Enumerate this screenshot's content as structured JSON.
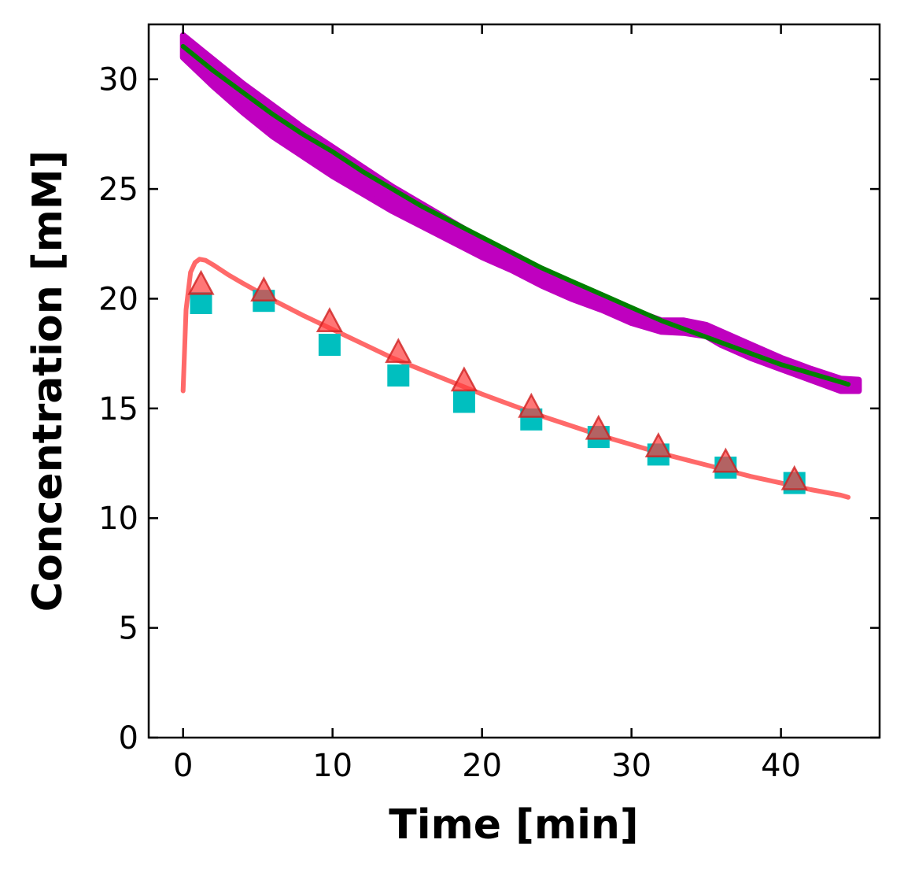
{
  "chart_data": {
    "type": "line",
    "xlabel": "Time [min]",
    "ylabel": "Concentration [mM]",
    "xlim": [
      -2.3,
      46.6
    ],
    "ylim": [
      0,
      32.5
    ],
    "xticks": [
      0,
      10,
      20,
      30,
      40
    ],
    "yticks": [
      0,
      5,
      10,
      15,
      20,
      25,
      30
    ],
    "grid": false,
    "legend": "none",
    "series": [
      {
        "kind": "band",
        "color": "#bf00bf",
        "x": [
          0,
          2,
          4,
          6,
          8,
          10,
          12,
          14,
          16,
          18,
          20,
          22,
          24,
          26,
          28,
          30,
          32,
          33.5,
          35,
          36,
          38,
          40,
          42,
          44,
          45.2
        ],
        "lower": [
          31.0,
          29.7,
          28.5,
          27.4,
          26.5,
          25.6,
          24.8,
          24.0,
          23.3,
          22.6,
          21.9,
          21.3,
          20.6,
          20.0,
          19.5,
          18.9,
          18.5,
          18.45,
          18.3,
          17.9,
          17.3,
          16.8,
          16.3,
          15.8,
          15.8
        ],
        "upper": [
          32.0,
          30.9,
          29.8,
          28.8,
          27.8,
          26.9,
          26.0,
          25.1,
          24.3,
          23.5,
          22.7,
          22.0,
          21.3,
          20.7,
          20.1,
          19.5,
          19.0,
          19.0,
          18.8,
          18.5,
          17.9,
          17.3,
          16.8,
          16.35,
          16.3
        ]
      },
      {
        "kind": "line",
        "color": "#007f00",
        "x": [
          0,
          2,
          4,
          6,
          8,
          10,
          12,
          14,
          16,
          18,
          20,
          22,
          24,
          26,
          28,
          30,
          32,
          34,
          36,
          38,
          40,
          42,
          44,
          44.5
        ],
        "y": [
          31.5,
          30.4,
          29.4,
          28.4,
          27.5,
          26.7,
          25.8,
          25.0,
          24.2,
          23.5,
          22.8,
          22.1,
          21.4,
          20.8,
          20.2,
          19.6,
          19.0,
          18.5,
          18.0,
          17.5,
          17.0,
          16.6,
          16.2,
          16.1
        ]
      },
      {
        "kind": "line",
        "color": "#ff4444",
        "opacity": 0.8,
        "x": [
          0,
          0.2,
          0.5,
          0.8,
          1.1,
          1.5,
          2,
          3,
          4,
          6,
          8,
          10,
          12,
          14,
          16,
          18,
          20,
          22,
          24,
          26,
          28,
          30,
          32,
          34,
          36,
          38,
          40,
          42,
          44,
          44.5
        ],
        "y": [
          15.8,
          19.5,
          21.2,
          21.65,
          21.8,
          21.75,
          21.55,
          21.1,
          20.7,
          19.95,
          19.25,
          18.6,
          17.95,
          17.3,
          16.75,
          16.2,
          15.65,
          15.15,
          14.65,
          14.2,
          13.75,
          13.35,
          12.95,
          12.6,
          12.25,
          11.9,
          11.6,
          11.3,
          11.05,
          10.95
        ]
      },
      {
        "kind": "markers",
        "marker": "square",
        "color": "#00bfbf",
        "x": [
          1.2,
          5.4,
          9.8,
          14.4,
          18.8,
          23.3,
          27.8,
          31.8,
          36.3,
          40.9
        ],
        "y": [
          19.8,
          19.9,
          17.9,
          16.5,
          15.3,
          14.5,
          13.7,
          12.9,
          12.3,
          11.6
        ]
      },
      {
        "kind": "markers",
        "marker": "triangle",
        "color": "#ff3c3c",
        "opacity": 0.7,
        "x": [
          1.2,
          5.4,
          9.8,
          14.4,
          18.8,
          23.3,
          27.8,
          31.8,
          36.3,
          40.9
        ],
        "y": [
          20.6,
          20.3,
          18.9,
          17.5,
          16.2,
          15.0,
          14.0,
          13.2,
          12.5,
          11.7
        ]
      }
    ]
  }
}
